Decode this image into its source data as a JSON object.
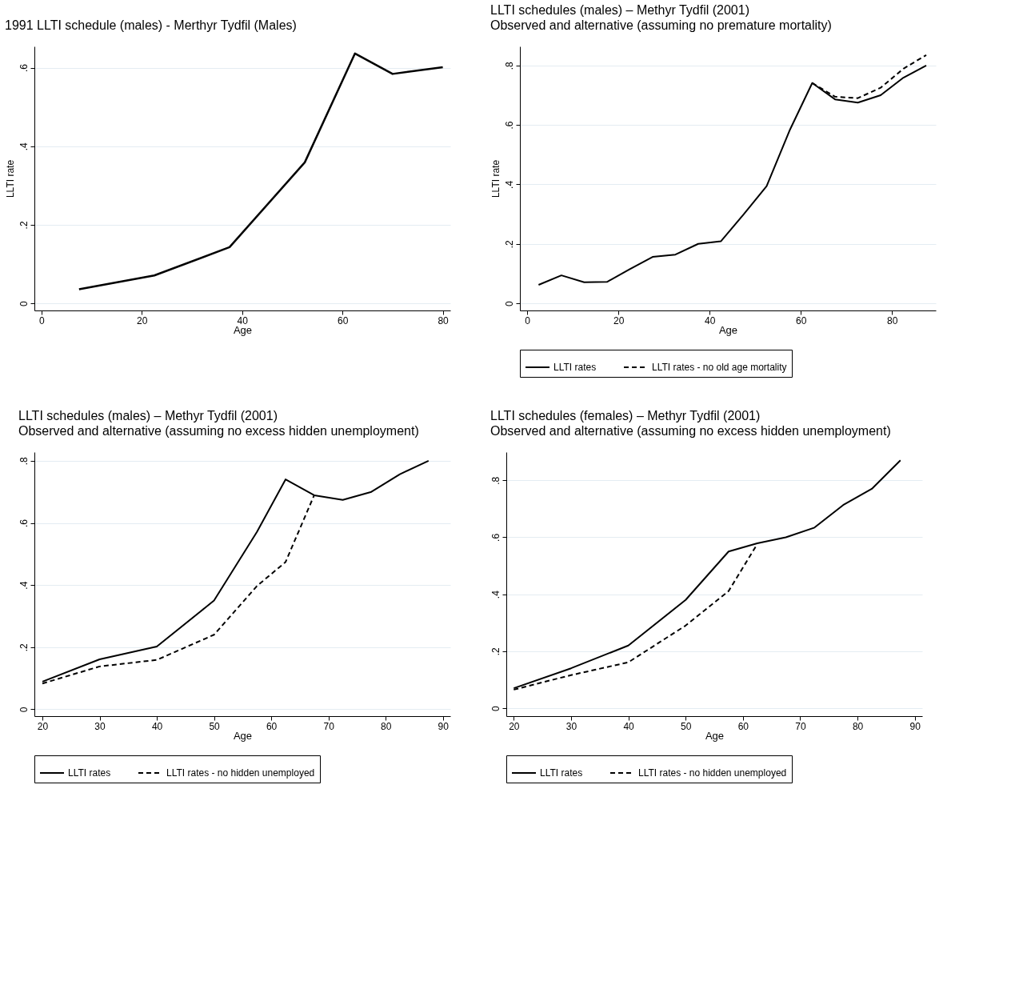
{
  "chart_data": [
    {
      "type": "line",
      "title": "1991 LLTI schedule (males)  - Merthyr Tydfil (Males)",
      "xlabel": "Age",
      "ylabel": "LLTI rate",
      "x": [
        7.5,
        22.5,
        37.5,
        52.5,
        62.5,
        70,
        80
      ],
      "series": [
        {
          "color": "#000000",
          "values": [
            0.036,
            0.071,
            0.143,
            0.359,
            0.636,
            0.584,
            0.601
          ]
        }
      ],
      "xlim": [
        -1.4,
        81.5
      ],
      "ylim": [
        -0.018,
        0.654
      ],
      "xticks": [
        0,
        20,
        40,
        60,
        80
      ],
      "yticks": [
        {
          "value": 0,
          "label": "0"
        },
        {
          "value": 0.2,
          "label": ".2"
        },
        {
          "value": 0.4,
          "label": ".4"
        },
        {
          "value": 0.6,
          "label": ".6"
        }
      ],
      "grid": "y",
      "legend": false,
      "line_style": "solid",
      "marker": "none"
    },
    {
      "type": "line",
      "title": "LLTI schedules (males) – Methyr Tydfil (2001)",
      "subtitle": "Observed and alternative (assuming no premature mortality)",
      "xlabel": "Age",
      "ylabel": "LLTI rate",
      "x": [
        2.5,
        7.5,
        12.5,
        17.5,
        22.5,
        27.5,
        32.5,
        37.5,
        42.5,
        47.5,
        52.5,
        57.5,
        62.5,
        67.5,
        72.5,
        77.5,
        82.5,
        87.5
      ],
      "series": [
        {
          "name": "LLTI rates",
          "color": "#000000",
          "line_style": "solid",
          "values": [
            0.062,
            0.094,
            0.071,
            0.072,
            0.115,
            0.156,
            0.164,
            0.2,
            0.209,
            0.3,
            0.394,
            0.58,
            0.741,
            0.686,
            0.675,
            0.7,
            0.759,
            0.8
          ]
        },
        {
          "name": "LLTI rates - no old age mortality",
          "color": "#000000",
          "line_style": "dashed",
          "values": [
            null,
            null,
            null,
            null,
            null,
            null,
            null,
            null,
            null,
            null,
            null,
            null,
            0.741,
            0.695,
            0.69,
            0.725,
            0.789,
            0.835
          ]
        }
      ],
      "xlim": [
        -1.6,
        89.6
      ],
      "ylim": [
        -0.024,
        0.864
      ],
      "xticks": [
        0,
        20,
        40,
        60,
        80
      ],
      "yticks": [
        {
          "value": 0,
          "label": "0"
        },
        {
          "value": 0.2,
          "label": ".2"
        },
        {
          "value": 0.4,
          "label": ".4"
        },
        {
          "value": 0.6,
          "label": ".6"
        },
        {
          "value": 0.8,
          "label": ".8"
        }
      ],
      "grid": "y",
      "legend": "bottom",
      "marker": "none"
    },
    {
      "type": "line",
      "title": "LLTI schedules (males) – Methyr Tydfil (2001)",
      "subtitle": "Observed and alternative (assuming no excess hidden unemployment)",
      "xlabel": "Age",
      "x": [
        20,
        30,
        40,
        50,
        57.5,
        62.5,
        67.5,
        72.5,
        77.5,
        82.5,
        87.5
      ],
      "series": [
        {
          "name": "LLTI rates",
          "color": "#000000",
          "line_style": "solid",
          "values": [
            0.089,
            0.161,
            0.202,
            0.35,
            0.571,
            0.74,
            0.689,
            0.674,
            0.7,
            0.757,
            0.8
          ]
        },
        {
          "name": "LLTI rates - no hidden unemployed",
          "color": "#000000",
          "line_style": "dashed",
          "values": [
            0.083,
            0.138,
            0.159,
            0.24,
            0.397,
            0.474,
            0.689,
            null,
            null,
            null,
            null
          ]
        }
      ],
      "xlim": [
        18.6,
        91.3
      ],
      "ylim": [
        -0.022,
        0.828
      ],
      "xticks": [
        20,
        30,
        40,
        50,
        60,
        70,
        80,
        90
      ],
      "yticks": [
        {
          "value": 0,
          "label": "0"
        },
        {
          "value": 0.2,
          "label": ".2"
        },
        {
          "value": 0.4,
          "label": ".4"
        },
        {
          "value": 0.6,
          "label": ".6"
        },
        {
          "value": 0.8,
          "label": ".8"
        }
      ],
      "grid": "y",
      "legend": "bottom",
      "marker": "none"
    },
    {
      "type": "line",
      "title": "LLTI schedules (females) – Methyr Tydfil (2001)",
      "subtitle": "Observed and alternative (assuming no excess hidden unemployment)",
      "xlabel": "Age",
      "x": [
        20,
        30,
        40,
        50,
        57.5,
        62.5,
        67.5,
        72.5,
        77.5,
        82.5,
        87.5
      ],
      "series": [
        {
          "name": "LLTI rates",
          "color": "#000000",
          "line_style": "solid",
          "values": [
            0.07,
            0.14,
            0.22,
            0.38,
            0.55,
            0.579,
            0.6,
            0.634,
            0.713,
            0.77,
            0.87
          ]
        },
        {
          "name": "LLTI rates - no hidden unemployed",
          "color": "#000000",
          "line_style": "dashed",
          "values": [
            0.065,
            0.116,
            0.161,
            0.29,
            0.411,
            0.576,
            null,
            null,
            null,
            null,
            null
          ]
        }
      ],
      "xlim": [
        18.7,
        91.3
      ],
      "ylim": [
        -0.028,
        0.899
      ],
      "xticks": [
        20,
        30,
        40,
        50,
        60,
        70,
        80,
        90
      ],
      "yticks": [
        {
          "value": 0,
          "label": "0"
        },
        {
          "value": 0.2,
          "label": ".2"
        },
        {
          "value": 0.4,
          "label": ".4"
        },
        {
          "value": 0.6,
          "label": ".6"
        },
        {
          "value": 0.8,
          "label": ".8"
        }
      ],
      "grid": "y",
      "legend": "bottom",
      "marker": "none"
    }
  ]
}
